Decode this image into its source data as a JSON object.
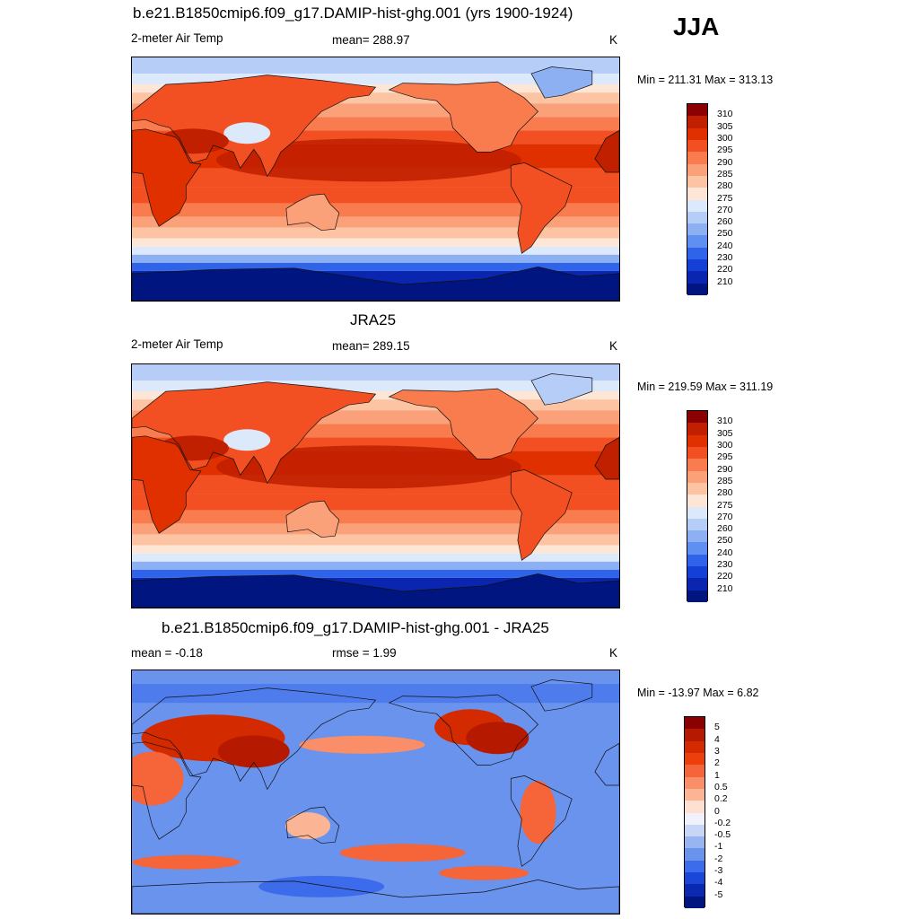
{
  "season": "JJA",
  "panels": [
    {
      "title": "b.e21.B1850cmip6.f09_g17.DAMIP-hist-ghg.001 (yrs 1900-1924)",
      "left_label": "2-meter Air Temp",
      "center_label": "mean= 288.97",
      "units": "K",
      "minmax": "Min = 211.31 Max = 313.13",
      "kind": "abs",
      "colorbar": {
        "levels": [
          "310",
          "305",
          "300",
          "295",
          "290",
          "285",
          "280",
          "275",
          "270",
          "260",
          "250",
          "240",
          "230",
          "220",
          "210"
        ],
        "colors": [
          "#8b0000",
          "#c01f00",
          "#e03000",
          "#f25022",
          "#f97c4e",
          "#fba17a",
          "#fdc4a4",
          "#fde6d6",
          "#dce9fb",
          "#b5cdf7",
          "#8cb0f2",
          "#5f8ff0",
          "#2f63ea",
          "#1540d8",
          "#0a26b0",
          "#00157f"
        ]
      }
    },
    {
      "title": "JRA25",
      "left_label": "2-meter Air Temp",
      "center_label": "mean= 289.15",
      "units": "K",
      "minmax": "Min = 219.59 Max = 311.19",
      "kind": "abs",
      "colorbar": {
        "levels": [
          "310",
          "305",
          "300",
          "295",
          "290",
          "285",
          "280",
          "275",
          "270",
          "260",
          "250",
          "240",
          "230",
          "220",
          "210"
        ],
        "colors": [
          "#8b0000",
          "#c01f00",
          "#e03000",
          "#f25022",
          "#f97c4e",
          "#fba17a",
          "#fdc4a4",
          "#fde6d6",
          "#dce9fb",
          "#b5cdf7",
          "#8cb0f2",
          "#5f8ff0",
          "#2f63ea",
          "#1540d8",
          "#0a26b0",
          "#00157f"
        ]
      }
    },
    {
      "title": "b.e21.B1850cmip6.f09_g17.DAMIP-hist-ghg.001 - JRA25",
      "left_label": "mean =  -0.18",
      "center_label": "rmse =   1.99",
      "units": "K",
      "minmax": "Min = -13.97 Max =   6.82",
      "kind": "diff",
      "colorbar": {
        "levels": [
          "5",
          "4",
          "3",
          "2",
          "1",
          "0.5",
          "0.2",
          "0",
          "-0.2",
          "-0.5",
          "-1",
          "-2",
          "-3",
          "-4",
          "-5"
        ],
        "colors": [
          "#8b0000",
          "#b51a00",
          "#d42a00",
          "#ec3f0c",
          "#f6643a",
          "#f98e68",
          "#fbb595",
          "#fde0cf",
          "#f1f0fb",
          "#c7d6f6",
          "#98b4f1",
          "#6a93ee",
          "#3c6ceb",
          "#1a47d8",
          "#0a28b2",
          "#00157f"
        ]
      }
    }
  ]
}
